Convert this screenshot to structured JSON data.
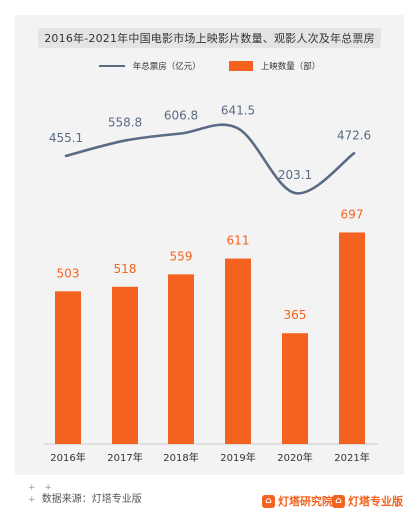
{
  "chart_data": {
    "type": "bar+line",
    "title": "2016年-2021年中国电影市场上映影片数量、观影人次及年总票房",
    "categories": [
      "2016年",
      "2017年",
      "2018年",
      "2019年",
      "2020年",
      "2021年"
    ],
    "series": [
      {
        "name": "上映数量（部）",
        "type": "bar",
        "color": "#f4621f",
        "values": [
          503,
          518,
          559,
          611,
          365,
          697
        ]
      },
      {
        "name": "年总票房（亿元）",
        "type": "line",
        "color": "#5a6b85",
        "values": [
          455.1,
          558.8,
          606.8,
          641.5,
          203.1,
          472.6
        ]
      }
    ],
    "legend_position": "top-center",
    "grid": false
  },
  "footer": {
    "plus": "+ +",
    "source_plus": "+",
    "source": "数据来源：灯塔专业版"
  },
  "brands": [
    {
      "name": "灯塔研究院",
      "icon": "lighthouse-icon",
      "color": "#f4621f"
    },
    {
      "name": "灯塔专业版",
      "icon": "lighthouse-icon",
      "color": "#f4621f"
    }
  ]
}
